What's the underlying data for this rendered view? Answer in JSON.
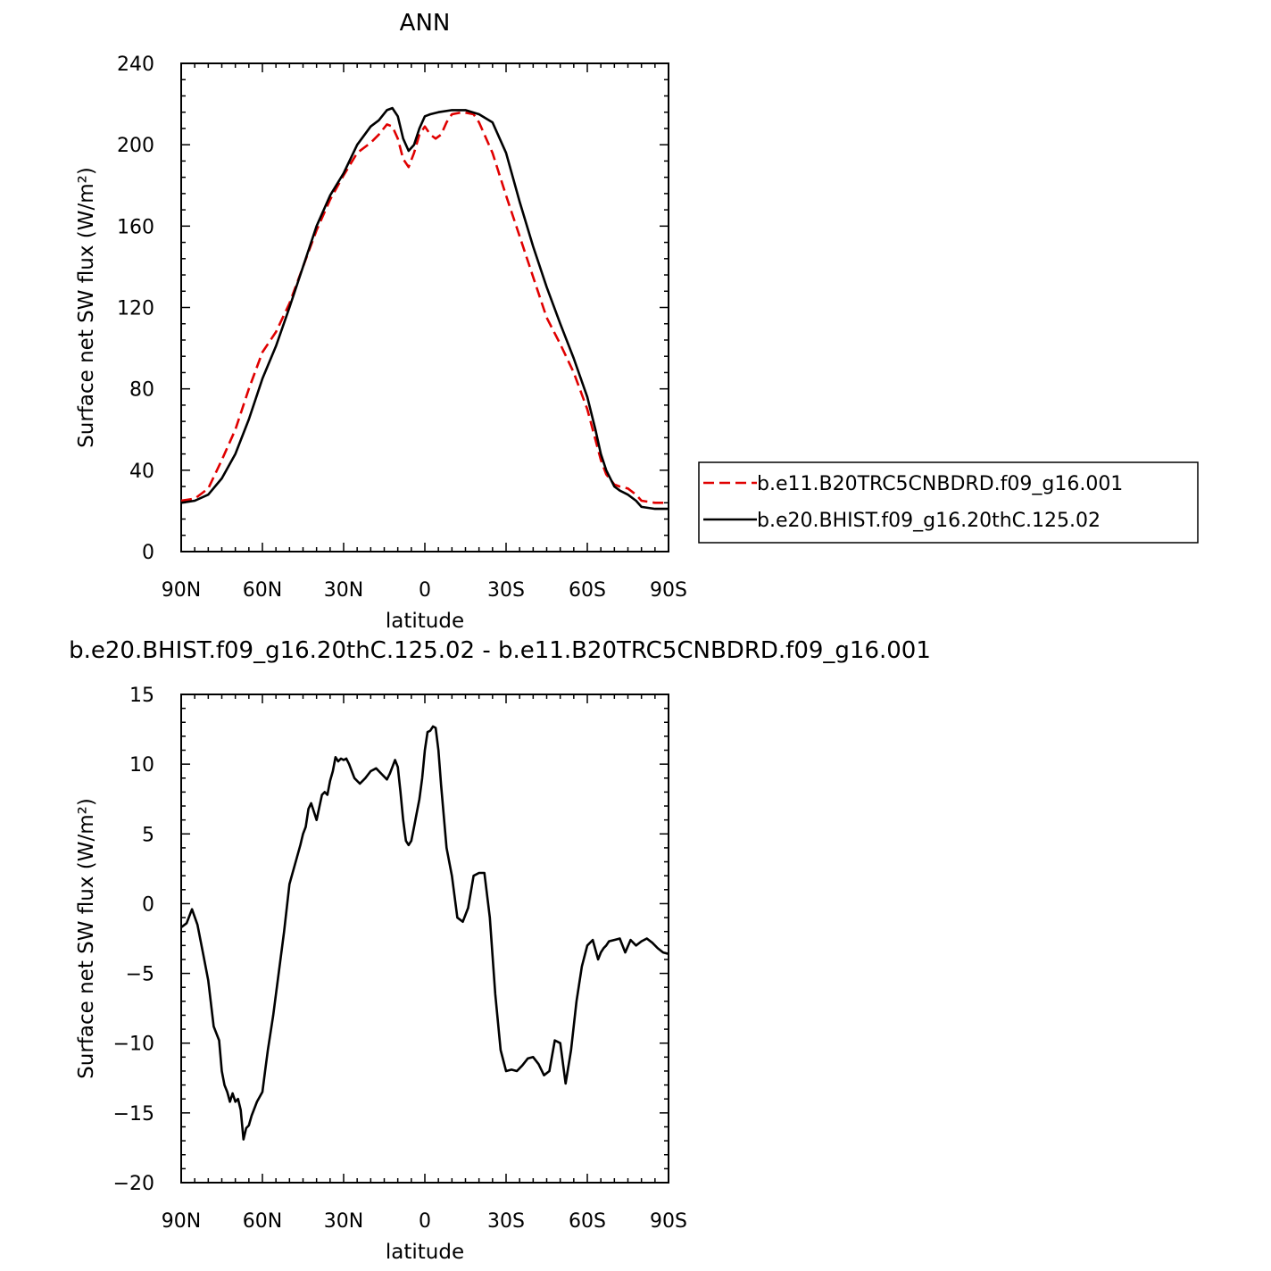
{
  "chart_data": [
    {
      "type": "line",
      "title": "ANN",
      "xlabel": "latitude",
      "ylabel": "Surface net SW flux (W/m²)",
      "xlim": [
        90,
        -90
      ],
      "ylim": [
        0,
        240
      ],
      "xticks": [
        90,
        60,
        30,
        0,
        -30,
        -60,
        -90
      ],
      "xtick_labels": [
        "90N",
        "60N",
        "30N",
        "0",
        "30S",
        "60S",
        "90S"
      ],
      "yticks": [
        0,
        40,
        80,
        120,
        160,
        200,
        240
      ],
      "ytick_labels": [
        "0",
        "40",
        "80",
        "120",
        "160",
        "200",
        "240"
      ],
      "grid": false,
      "legend": "right",
      "series": [
        {
          "name": "b.e11.B20TRC5CNBDRD.f09_g16.001",
          "color": "#e00000",
          "dash": "dashed",
          "x": [
            90,
            85,
            80,
            75,
            70,
            65,
            60,
            55,
            50,
            45,
            40,
            35,
            30,
            25,
            20,
            17,
            14,
            12,
            10,
            8,
            6,
            4,
            2,
            0,
            -2,
            -4,
            -6,
            -8,
            -10,
            -14,
            -18,
            -20,
            -25,
            -30,
            -35,
            -40,
            -45,
            -50,
            -55,
            -60,
            -63,
            -65,
            -67,
            -70,
            -72,
            -75,
            -78,
            -80,
            -85,
            -90
          ],
          "y": [
            25,
            26,
            31,
            45,
            60,
            80,
            98,
            108,
            122,
            140,
            158,
            173,
            185,
            196,
            201,
            205,
            210,
            209,
            203,
            193,
            189,
            196,
            205,
            209,
            205,
            203,
            205,
            211,
            215,
            216,
            215,
            211,
            196,
            175,
            155,
            135,
            115,
            102,
            88,
            70,
            55,
            45,
            38,
            33,
            32,
            31,
            28,
            25,
            24,
            24
          ]
        },
        {
          "name": "b.e20.BHIST.f09_g16.20thC.125.02",
          "color": "#000000",
          "dash": "solid",
          "x": [
            90,
            85,
            80,
            75,
            70,
            65,
            60,
            55,
            50,
            45,
            40,
            35,
            30,
            25,
            20,
            17,
            14,
            12,
            10,
            8,
            6,
            4,
            2,
            0,
            -2,
            -5,
            -10,
            -15,
            -20,
            -25,
            -30,
            -35,
            -40,
            -45,
            -50,
            -55,
            -60,
            -63,
            -65,
            -67,
            -70,
            -72,
            -75,
            -78,
            -80,
            -85,
            -90
          ],
          "y": [
            24,
            25,
            28,
            36,
            48,
            65,
            85,
            101,
            120,
            140,
            160,
            175,
            186,
            200,
            209,
            212,
            217,
            218,
            214,
            203,
            197,
            200,
            208,
            214,
            215,
            216,
            217,
            217,
            215,
            211,
            196,
            172,
            150,
            130,
            112,
            95,
            76,
            60,
            48,
            40,
            32,
            30,
            28,
            25,
            22,
            21,
            21
          ]
        }
      ]
    },
    {
      "type": "line",
      "title": "b.e20.BHIST.f09_g16.20thC.125.02 - b.e11.B20TRC5CNBDRD.f09_g16.001",
      "xlabel": "latitude",
      "ylabel": "Surface net SW flux (W/m²)",
      "xlim": [
        90,
        -90
      ],
      "ylim": [
        -20,
        15
      ],
      "xticks": [
        90,
        60,
        30,
        0,
        -30,
        -60,
        -90
      ],
      "xtick_labels": [
        "90N",
        "60N",
        "30N",
        "0",
        "30S",
        "60S",
        "90S"
      ],
      "yticks": [
        -20,
        -15,
        -10,
        -5,
        0,
        5,
        10,
        15
      ],
      "ytick_labels": [
        "−20",
        "−15",
        "−10",
        "−5",
        "0",
        "5",
        "10",
        "15"
      ],
      "grid": false,
      "series": [
        {
          "color": "#000000",
          "dash": "solid",
          "x": [
            90,
            88,
            86,
            84,
            82,
            80,
            78,
            76,
            75,
            74,
            73,
            72,
            71,
            70,
            69,
            68,
            67,
            66,
            65,
            64,
            62,
            60,
            59,
            58,
            56,
            54,
            52,
            50,
            48,
            46,
            45,
            44,
            43,
            42,
            40,
            38,
            37,
            36,
            35,
            34,
            33,
            32,
            31,
            30,
            29,
            28,
            27,
            26,
            24,
            22,
            20,
            18,
            16,
            14,
            13,
            12,
            11,
            10,
            9,
            8,
            7,
            6,
            5,
            4,
            3,
            2,
            1,
            0,
            -1,
            -2,
            -3,
            -4,
            -5,
            -6,
            -8,
            -10,
            -12,
            -14,
            -16,
            -18,
            -20,
            -22,
            -24,
            -26,
            -28,
            -30,
            -32,
            -34,
            -36,
            -38,
            -40,
            -42,
            -44,
            -46,
            -48,
            -50,
            -52,
            -54,
            -56,
            -58,
            -60,
            -62,
            -63,
            -64,
            -65,
            -66,
            -67,
            -68,
            -70,
            -72,
            -74,
            -76,
            -78,
            -80,
            -82,
            -84,
            -86,
            -88,
            -90
          ],
          "y": [
            -1.7,
            -1.4,
            -0.4,
            -1.5,
            -3.5,
            -5.5,
            -8.8,
            -9.8,
            -12,
            -13,
            -13.5,
            -14.2,
            -13.6,
            -14.2,
            -14,
            -14.8,
            -16.9,
            -16.1,
            -15.9,
            -15.2,
            -14.2,
            -13.5,
            -12,
            -10.5,
            -8,
            -5,
            -2,
            1.4,
            2.8,
            4.2,
            5,
            5.5,
            6.8,
            7.2,
            6,
            7.8,
            8,
            7.8,
            8.8,
            9.5,
            10.5,
            10.2,
            10.4,
            10.3,
            10.4,
            10,
            9.5,
            9,
            8.6,
            9,
            9.5,
            9.7,
            9.3,
            8.9,
            9.3,
            9.8,
            10.3,
            9.8,
            8,
            6,
            4.5,
            4.2,
            4.5,
            5.5,
            6.5,
            7.5,
            9,
            11,
            12.3,
            12.4,
            12.7,
            12.6,
            11,
            8.5,
            4,
            2,
            -1,
            -1.3,
            -0.3,
            2,
            2.2,
            2.2,
            -1,
            -6.5,
            -10.5,
            -12,
            -11.9,
            -12,
            -11.6,
            -11.1,
            -11,
            -11.5,
            -12.3,
            -12,
            -9.8,
            -10,
            -12.9,
            -10.5,
            -7,
            -4.5,
            -3,
            -2.6,
            -3.3,
            -4,
            -3.5,
            -3.2,
            -3,
            -2.7,
            -2.6,
            -2.5,
            -3.5,
            -2.6,
            -3,
            -2.7,
            -2.5,
            -2.8,
            -3.2,
            -3.5,
            -3.6
          ]
        }
      ]
    }
  ]
}
